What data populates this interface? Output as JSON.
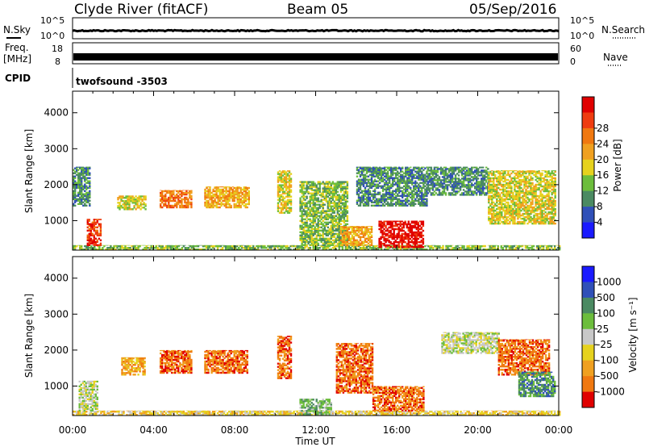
{
  "header": {
    "station": "Clyde River (fitACF)",
    "beam": "Beam 05",
    "date": "05/Sep/2016"
  },
  "params": {
    "nsky_label": "N.Sky",
    "nsky_ticks": [
      "10^5",
      "10^0"
    ],
    "nsearch_label": "N.Search",
    "nsearch_ticks": [
      "10^5",
      "10^0"
    ],
    "freq_label_1": "Freq.",
    "freq_label_2": "[MHz]",
    "freq_ticks": [
      "18",
      "8"
    ],
    "nave_label": "Nave",
    "nave_ticks": [
      "60",
      "0"
    ],
    "cpid_label": "CPID",
    "cpid_value": "twofsound -3503"
  },
  "axes": {
    "ylabel": "Slant Range [km]",
    "yticks": [
      1000,
      2000,
      3000,
      4000
    ],
    "ylim": [
      180,
      4600
    ],
    "xlabel": "Time UT",
    "xticks": [
      "00:00",
      "04:00",
      "08:00",
      "12:00",
      "16:00",
      "20:00",
      "00:00"
    ],
    "xlim_hours": [
      0,
      24
    ]
  },
  "colors": {
    "power_scale": [
      "#1a1aff",
      "#3050b8",
      "#4b8a62",
      "#6cbd3c",
      "#e6d21e",
      "#f0a020",
      "#f07810",
      "#ef3c10",
      "#e00000"
    ],
    "velocity_scale": [
      "#1a1aff",
      "#3050b8",
      "#4b8a62",
      "#6cbd3c",
      "#c8c8c8",
      "#e6d21e",
      "#f0a020",
      "#f07810",
      "#e00000"
    ],
    "ground_scatter": "#b0b0b0"
  },
  "chart_data": [
    {
      "type": "heatmap",
      "panel": "power",
      "colorbar_label": "Power [dB]",
      "colorbar_ticks": [
        "4",
        "8",
        "12",
        "16",
        "20",
        "24",
        "28"
      ],
      "x_unit": "hours UT",
      "y_unit": "km",
      "regions": [
        {
          "t0": 0.0,
          "t1": 24.0,
          "r0": 180,
          "r1": 320,
          "level": 3
        },
        {
          "t0": 0.7,
          "t1": 1.4,
          "r0": 300,
          "r1": 1050,
          "level": 7
        },
        {
          "t0": 0.0,
          "t1": 0.8,
          "r0": 1400,
          "r1": 2500,
          "level": 2
        },
        {
          "t0": 2.2,
          "t1": 3.6,
          "r0": 1300,
          "r1": 1700,
          "level": 4
        },
        {
          "t0": 4.3,
          "t1": 5.9,
          "r0": 1350,
          "r1": 1850,
          "level": 6
        },
        {
          "t0": 6.5,
          "t1": 8.7,
          "r0": 1350,
          "r1": 1950,
          "level": 5
        },
        {
          "t0": 10.1,
          "t1": 10.8,
          "r0": 1200,
          "r1": 2400,
          "level": 4
        },
        {
          "t0": 11.2,
          "t1": 13.6,
          "r0": 300,
          "r1": 2100,
          "level": 3
        },
        {
          "t0": 13.2,
          "t1": 14.8,
          "r0": 300,
          "r1": 850,
          "level": 5
        },
        {
          "t0": 15.1,
          "t1": 17.3,
          "r0": 250,
          "r1": 1000,
          "level": 8
        },
        {
          "t0": 14.0,
          "t1": 17.5,
          "r0": 1400,
          "r1": 2500,
          "level": 2
        },
        {
          "t0": 17.5,
          "t1": 20.5,
          "r0": 1700,
          "r1": 2500,
          "level": 2
        },
        {
          "t0": 20.5,
          "t1": 23.8,
          "r0": 900,
          "r1": 2400,
          "level": 4
        }
      ]
    },
    {
      "type": "heatmap",
      "panel": "velocity",
      "colorbar_label": "Velocity [m s⁻¹]",
      "colorbar_ticks": [
        "1000",
        "500",
        "100",
        "25",
        "-25",
        "-100",
        "-500",
        "-1000"
      ],
      "x_unit": "hours UT",
      "y_unit": "km",
      "regions": [
        {
          "t0": 0.0,
          "t1": 24.0,
          "r0": 180,
          "r1": 320,
          "level": 5
        },
        {
          "t0": 0.3,
          "t1": 1.2,
          "r0": 300,
          "r1": 1150,
          "level": 4
        },
        {
          "t0": 2.4,
          "t1": 3.6,
          "r0": 1300,
          "r1": 1800,
          "level": 6
        },
        {
          "t0": 4.3,
          "t1": 5.9,
          "r0": 1350,
          "r1": 2000,
          "level": 7
        },
        {
          "t0": 6.5,
          "t1": 8.6,
          "r0": 1350,
          "r1": 2000,
          "level": 7
        },
        {
          "t0": 10.1,
          "t1": 10.8,
          "r0": 1200,
          "r1": 2400,
          "level": 7
        },
        {
          "t0": 11.2,
          "t1": 12.8,
          "r0": 200,
          "r1": 650,
          "level": 3
        },
        {
          "t0": 13.0,
          "t1": 14.8,
          "r0": 800,
          "r1": 2200,
          "level": 7
        },
        {
          "t0": 14.8,
          "t1": 17.3,
          "r0": 300,
          "r1": 1000,
          "level": 7
        },
        {
          "t0": 18.2,
          "t1": 21.0,
          "r0": 1900,
          "r1": 2500,
          "level": 4
        },
        {
          "t0": 21.0,
          "t1": 23.5,
          "r0": 1300,
          "r1": 2300,
          "level": 7
        },
        {
          "t0": 22.0,
          "t1": 23.8,
          "r0": 700,
          "r1": 1400,
          "level": 2
        }
      ]
    }
  ]
}
